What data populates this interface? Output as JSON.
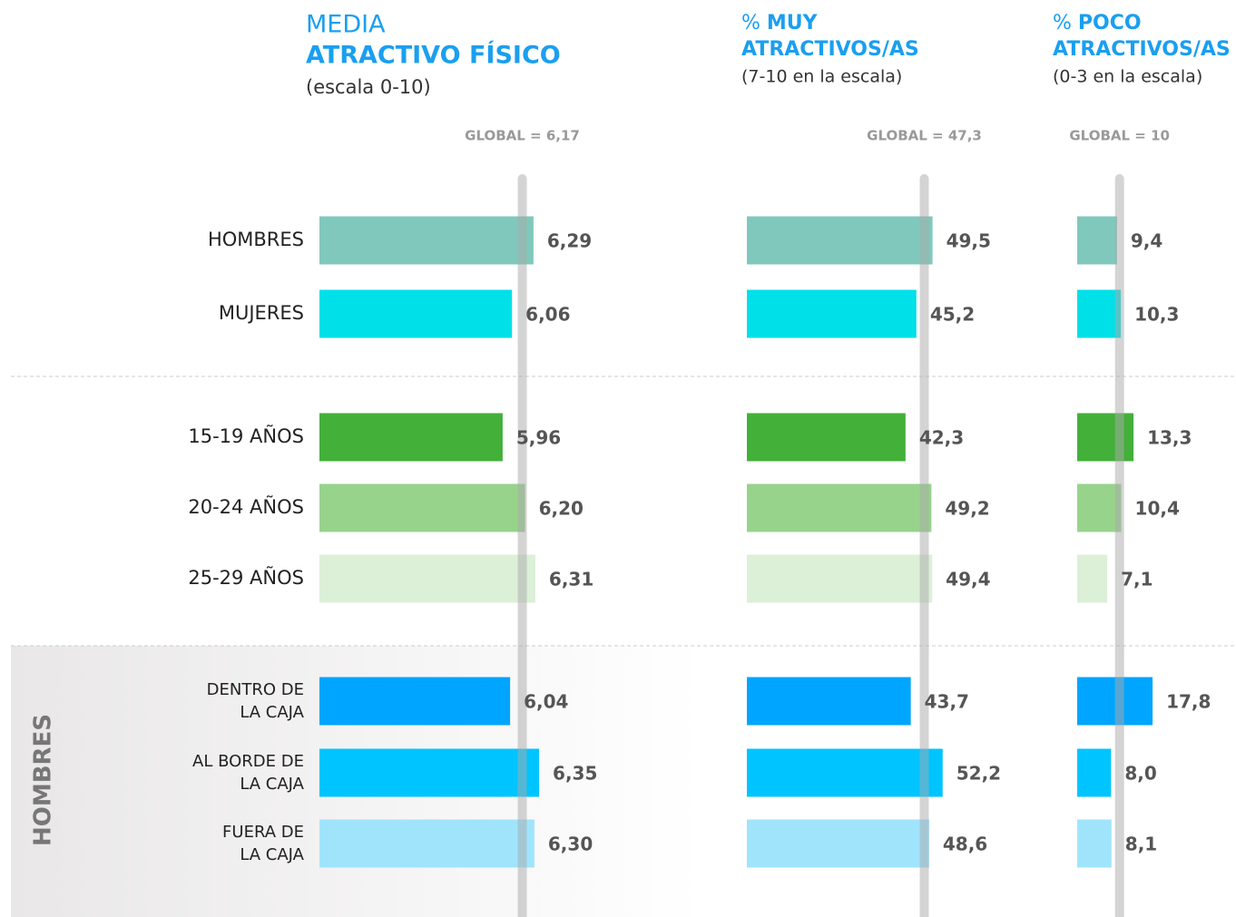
{
  "chart_data": [
    {
      "type": "bar",
      "orientation": "horizontal",
      "title_light": "MEDIA",
      "title": [
        "ATRACTIVO FÍSICO"
      ],
      "subtitle": "(escala 0-10)",
      "group_label": "HOMBRES",
      "categories": [
        "HOMBRES",
        "MUJERES",
        "15-19 AÑOS",
        "20-24 AÑOS",
        "25-29 AÑOS",
        [
          "DENTRO DE",
          "LA CAJA"
        ],
        [
          "AL BORDE DE",
          "LA CAJA"
        ],
        [
          "FUERA DE",
          "LA CAJA"
        ]
      ],
      "colors": [
        "#80c8bc",
        "#00e0e8",
        "#43b03a",
        "#98d38c",
        "#dcf0d8",
        "#00a5ff",
        "#00c4ff",
        "#a0e4fc"
      ],
      "values": [
        6.29,
        6.06,
        5.96,
        6.2,
        6.31,
        6.04,
        6.35,
        6.3
      ],
      "value_labels": [
        "6,29",
        "6,06",
        "5,96",
        "6,20",
        "6,31",
        "6,04",
        "6,35",
        "6,30"
      ],
      "global": {
        "value": 6.17,
        "label": "GLOBAL = 6,17"
      },
      "xlim": [
        4,
        7
      ]
    },
    {
      "type": "bar",
      "orientation": "horizontal",
      "title_light": "%",
      "title": [
        "MUY",
        "ATRACTIVOS/AS"
      ],
      "subtitle": "(7-10 en la escala)",
      "values": [
        49.5,
        45.2,
        42.3,
        49.2,
        49.4,
        43.7,
        52.2,
        48.6
      ],
      "value_labels": [
        "49,5",
        "45,2",
        "42,3",
        "49,2",
        "49,4",
        "43,7",
        "52,2",
        "48,6"
      ],
      "global": {
        "value": 47.3,
        "label": "GLOBAL = 47,3"
      },
      "xlim": [
        0,
        60
      ]
    },
    {
      "type": "bar",
      "orientation": "horizontal",
      "title_light": "%",
      "title": [
        "POCO",
        "ATRACTIVOS/AS"
      ],
      "subtitle": "(0-3 en la escala)",
      "values": [
        9.4,
        10.3,
        13.3,
        10.4,
        7.1,
        17.8,
        8.0,
        8.1
      ],
      "value_labels": [
        "9,4",
        "10,3",
        "13,3",
        "10,4",
        "7,1",
        "17,8",
        "8,0",
        "8,1"
      ],
      "global": {
        "value": 10,
        "label": "GLOBAL = 10"
      },
      "xlim": [
        0,
        30
      ]
    }
  ]
}
